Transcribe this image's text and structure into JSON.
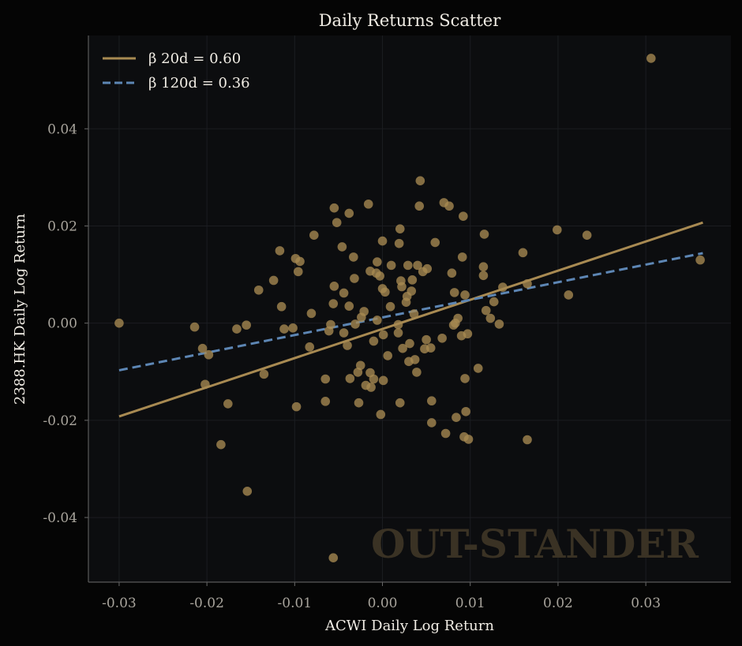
{
  "chart_data": {
    "type": "scatter",
    "title": "Daily Returns Scatter",
    "xlabel": "ACWI Daily Log Return",
    "ylabel": "2388.HK Daily Log Return",
    "xlim": [
      -0.0335,
      0.0397
    ],
    "ylim": [
      -0.0533,
      0.0592
    ],
    "xticks": [
      -0.03,
      -0.02,
      -0.01,
      0.0,
      0.01,
      0.02,
      0.03
    ],
    "xtick_labels": [
      "-0.03",
      "-0.02",
      "-0.01",
      "0.00",
      "0.01",
      "0.02",
      "0.03"
    ],
    "yticks": [
      -0.04,
      -0.02,
      0.0,
      0.02,
      0.04
    ],
    "ytick_labels": [
      "-0.04",
      "-0.02",
      "0.00",
      "0.02",
      "0.04"
    ],
    "grid": true,
    "legend_position": "top-left",
    "watermark": "OUT-STANDER",
    "colors": {
      "background": "#050505",
      "plot_background": "#0c0d0f",
      "points": "#a88a52",
      "beta_20d": "#a88a52",
      "beta_120d": "#5d86b4"
    },
    "series": [
      {
        "name": "daily returns",
        "kind": "scatter",
        "points": [
          [
            -0.03,
            0.0
          ],
          [
            0.0306,
            0.0545
          ],
          [
            0.0362,
            0.013
          ],
          [
            -0.0214,
            -0.0008
          ],
          [
            -0.0205,
            -0.0052
          ],
          [
            -0.0198,
            -0.0065
          ],
          [
            -0.0202,
            -0.0126
          ],
          [
            -0.0176,
            -0.0166
          ],
          [
            -0.0184,
            -0.025
          ],
          [
            -0.0154,
            -0.0346
          ],
          [
            -0.0166,
            -0.0012
          ],
          [
            -0.0155,
            -0.0004
          ],
          [
            -0.0141,
            0.0068
          ],
          [
            -0.0135,
            -0.0105
          ],
          [
            -0.0124,
            0.0088
          ],
          [
            -0.0117,
            0.0149
          ],
          [
            -0.0115,
            0.0034
          ],
          [
            -0.0112,
            -0.0012
          ],
          [
            -0.0102,
            -0.001
          ],
          [
            -0.0099,
            0.0133
          ],
          [
            -0.0094,
            0.0127
          ],
          [
            -0.0096,
            0.0106
          ],
          [
            -0.0098,
            -0.0172
          ],
          [
            -0.0081,
            0.002
          ],
          [
            -0.0083,
            -0.0049
          ],
          [
            -0.0078,
            0.0181
          ],
          [
            -0.0065,
            -0.0115
          ],
          [
            -0.0065,
            -0.0161
          ],
          [
            -0.0061,
            -0.0016
          ],
          [
            -0.0059,
            -0.0003
          ],
          [
            -0.0056,
            0.004
          ],
          [
            -0.0055,
            0.0076
          ],
          [
            -0.0055,
            0.0237
          ],
          [
            -0.0052,
            0.0207
          ],
          [
            -0.0046,
            0.0157
          ],
          [
            -0.0044,
            0.0062
          ],
          [
            -0.0044,
            -0.002
          ],
          [
            -0.004,
            -0.0046
          ],
          [
            -0.0038,
            0.0035
          ],
          [
            -0.0037,
            -0.0114
          ],
          [
            -0.0038,
            0.0226
          ],
          [
            -0.0033,
            0.0136
          ],
          [
            -0.0032,
            0.0092
          ],
          [
            -0.0031,
            -0.0002
          ],
          [
            -0.0028,
            -0.0101
          ],
          [
            -0.0027,
            -0.0164
          ],
          [
            -0.0025,
            -0.0087
          ],
          [
            -0.0024,
            0.0012
          ],
          [
            -0.0021,
            0.0024
          ],
          [
            -0.0019,
            -0.0128
          ],
          [
            -0.0016,
            0.0245
          ],
          [
            -0.0014,
            0.0107
          ],
          [
            -0.0014,
            -0.0102
          ],
          [
            -0.0013,
            -0.0132
          ],
          [
            -0.001,
            -0.0115
          ],
          [
            -0.001,
            -0.0037
          ],
          [
            -0.0007,
            0.0103
          ],
          [
            -0.0006,
            0.0126
          ],
          [
            -0.0006,
            0.0006
          ],
          [
            -0.0003,
            0.0097
          ],
          [
            -0.0002,
            -0.0188
          ],
          [
            0.0,
            0.0071
          ],
          [
            0.0,
            0.0169
          ],
          [
            0.0001,
            -0.0024
          ],
          [
            0.0001,
            -0.0118
          ],
          [
            0.0003,
            0.0064
          ],
          [
            0.0006,
            -0.0067
          ],
          [
            0.0009,
            0.0034
          ],
          [
            0.001,
            0.0119
          ],
          [
            0.0018,
            -0.002
          ],
          [
            0.0018,
            -0.0003
          ],
          [
            0.0019,
            0.0164
          ],
          [
            0.002,
            0.0194
          ],
          [
            0.002,
            -0.0164
          ],
          [
            0.0021,
            0.0087
          ],
          [
            0.0022,
            0.0075
          ],
          [
            0.0023,
            -0.0052
          ],
          [
            0.0027,
            0.0043
          ],
          [
            0.0028,
            0.0055
          ],
          [
            0.0029,
            0.0119
          ],
          [
            0.003,
            -0.0079
          ],
          [
            0.0031,
            -0.0042
          ],
          [
            0.0033,
            0.0066
          ],
          [
            0.0034,
            0.0089
          ],
          [
            0.0036,
            0.0019
          ],
          [
            0.0037,
            -0.0075
          ],
          [
            0.0039,
            -0.0101
          ],
          [
            0.004,
            0.0119
          ],
          [
            0.0042,
            0.0241
          ],
          [
            0.0043,
            0.0293
          ],
          [
            0.0046,
            0.0106
          ],
          [
            0.0048,
            -0.0053
          ],
          [
            0.005,
            -0.0034
          ],
          [
            0.0051,
            0.0112
          ],
          [
            0.0055,
            -0.0051
          ],
          [
            0.0056,
            -0.016
          ],
          [
            0.0056,
            -0.0205
          ],
          [
            0.006,
            0.0166
          ],
          [
            0.0068,
            -0.0031
          ],
          [
            0.007,
            0.0248
          ],
          [
            0.0072,
            -0.0227
          ],
          [
            0.0076,
            0.0241
          ],
          [
            0.0079,
            0.0103
          ],
          [
            0.0081,
            -0.0004
          ],
          [
            0.0082,
            0.0063
          ],
          [
            0.0083,
            0.0
          ],
          [
            0.0084,
            -0.0194
          ],
          [
            0.0086,
            0.001
          ],
          [
            0.009,
            -0.0026
          ],
          [
            0.0091,
            0.0136
          ],
          [
            0.0093,
            -0.0234
          ],
          [
            0.0092,
            0.022
          ],
          [
            0.0094,
            0.0058
          ],
          [
            0.0094,
            -0.0114
          ],
          [
            0.0095,
            -0.0182
          ],
          [
            0.0097,
            -0.0022
          ],
          [
            0.0098,
            -0.0239
          ],
          [
            0.0109,
            -0.0093
          ],
          [
            0.0115,
            0.0098
          ],
          [
            0.0115,
            0.0116
          ],
          [
            0.0116,
            0.0183
          ],
          [
            0.0118,
            0.0026
          ],
          [
            0.0123,
            0.001
          ],
          [
            0.0127,
            0.0044
          ],
          [
            0.0133,
            -0.0002
          ],
          [
            0.0137,
            0.0074
          ],
          [
            0.016,
            0.0145
          ],
          [
            0.0165,
            0.0081
          ],
          [
            0.0165,
            -0.024
          ],
          [
            0.0199,
            0.0192
          ],
          [
            0.0212,
            0.0058
          ],
          [
            0.0233,
            0.0181
          ],
          [
            -0.0056,
            -0.0483
          ]
        ]
      },
      {
        "name": "β 20d = 0.60",
        "kind": "line",
        "style": "solid",
        "x": [
          -0.03,
          0.0365
        ],
        "y": [
          -0.0192,
          0.0207
        ]
      },
      {
        "name": "β 120d = 0.36",
        "kind": "line",
        "style": "dashed",
        "x": [
          -0.03,
          0.0365
        ],
        "y": [
          -0.0097,
          0.0144
        ]
      }
    ]
  }
}
